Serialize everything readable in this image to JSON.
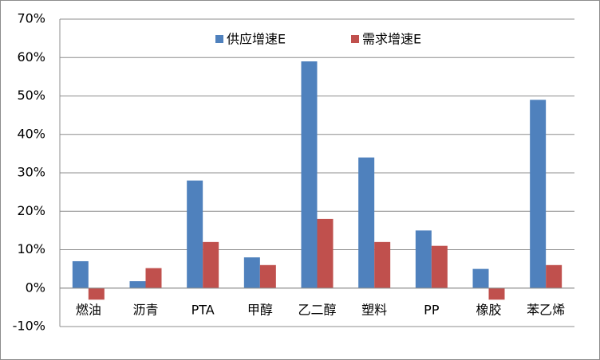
{
  "chart_data": {
    "type": "bar",
    "categories": [
      "燃油",
      "沥青",
      "PTA",
      "甲醇",
      "乙二醇",
      "塑料",
      "PP",
      "橡胶",
      "苯乙烯"
    ],
    "series": [
      {
        "name": "供应增速E",
        "color": "#4f81bd",
        "values": [
          7,
          1.8,
          28,
          8,
          59,
          34,
          15,
          5,
          49
        ]
      },
      {
        "name": "需求增速E",
        "color": "#c0504d",
        "values": [
          -3,
          5.2,
          12,
          6,
          18,
          12,
          11,
          -3,
          6
        ]
      }
    ],
    "ylim": [
      -10,
      70
    ],
    "yticks": [
      {
        "value": -10,
        "label": "-10%"
      },
      {
        "value": 0,
        "label": "0%"
      },
      {
        "value": 10,
        "label": "10%"
      },
      {
        "value": 20,
        "label": "20%"
      },
      {
        "value": 30,
        "label": "30%"
      },
      {
        "value": 40,
        "label": "40%"
      },
      {
        "value": 50,
        "label": "50%"
      },
      {
        "value": 60,
        "label": "60%"
      },
      {
        "value": 70,
        "label": "70%"
      }
    ],
    "grid": true,
    "legend": "top"
  }
}
